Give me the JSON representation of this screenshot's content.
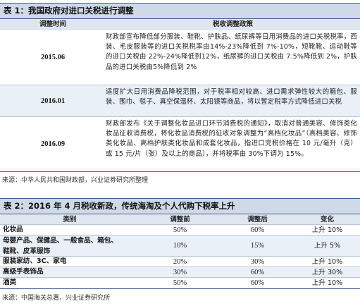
{
  "table1": {
    "title": "表 1：我国政府对进口关税进行调整",
    "headers": [
      "调整时间",
      "税收调整政策"
    ],
    "rows": [
      {
        "year": "2015.06",
        "text": "财政部宣布降低部分服装、鞋靴、护肤品、纸尿裤等日用消费品的进口关税税率，西装、毛皮服装等的进口关税税率由14%-23%降低到 7%-10%，短靴靴、运动鞋等的进口关税由 22%-24%降低到12%，纸尿裤的进口关税由 7.5%降低到 2%，护肤品的进口关税由5%降低到 2%"
      },
      {
        "year": "2016.01",
        "text": "适度扩大日用消费品降税范围，对于税率相对较高、进口需求弹性较大的箱包、服装、围巾、毯子、真空保温杯、太阳镜等商品，将以暂定税率方式降低进口关税"
      },
      {
        "year": "2016.09",
        "text": "财政部发布《关于调整化妆品进口环节消费税的通知》，取消对普通美容、修饰类化妆品征收消费税，将化妆品消费税的征收对象调整为“高档化妆品”（高档美容、修饰类化妆品、高档护肤类化妆品和成套化妆品，指进口完税价格在 10 元/毫升（克）或 15 元/片（张）及以上的商品），并将税率由 30%下调为 15%。"
      }
    ],
    "source": "来源：中华人民共和国财政部，兴业证券研究所整理"
  },
  "table2": {
    "title": "表 2：2016 年 4 月税收新政，传统海淘及个人代购下税率上升",
    "headers": [
      "类别",
      "调整前",
      "调整后",
      "变化"
    ],
    "rows": [
      {
        "category": "化妆品",
        "before": "50%",
        "after": "60%",
        "change": "上升 10%"
      },
      {
        "category": "母婴产品、保健品、一般食品、箱包、鞋靴、皮革服饰",
        "before": "10%",
        "after": "15%",
        "change": "上升 5%"
      },
      {
        "category": "服装家纺、3C、家电",
        "before": "20%",
        "after": "30%",
        "change": "上升 10%"
      },
      {
        "category": "高级手表饰品",
        "before": "30%",
        "after": "60%",
        "change": "上升 30%"
      },
      {
        "category": "酒类",
        "before": "50%",
        "after": "60%",
        "change": "上升 10%"
      }
    ],
    "source": "来源：中国海关总署，兴业证券研究所"
  }
}
